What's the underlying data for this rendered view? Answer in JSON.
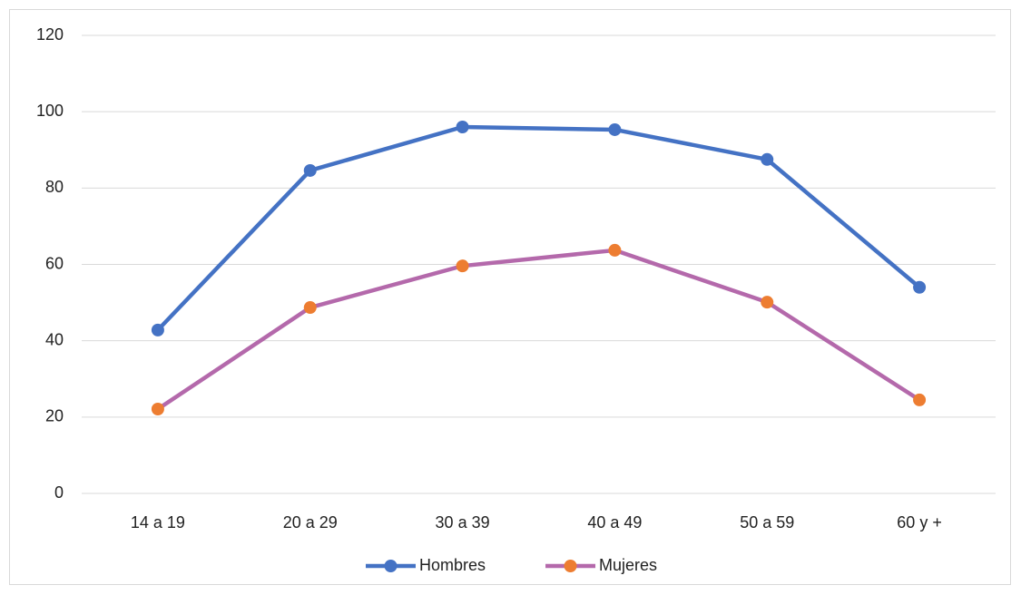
{
  "chart_data": {
    "type": "line",
    "categories": [
      "14 a 19",
      "20 a 29",
      "30 a 39",
      "40 a 49",
      "50 a 59",
      "60 y +"
    ],
    "series": [
      {
        "name": "Hombres",
        "color": "#4472c4",
        "marker_color": "#4472c4",
        "values": [
          42.8,
          84.6,
          96,
          95.3,
          87.5,
          54
        ]
      },
      {
        "name": "Mujeres",
        "color": "#b469ab",
        "marker_color": "#ed7d31",
        "values": [
          22.1,
          48.7,
          59.6,
          63.7,
          50.1,
          24.5
        ]
      }
    ],
    "ylim": [
      0,
      120
    ],
    "yticks": [
      0,
      20,
      40,
      60,
      80,
      100,
      120
    ],
    "grid": true,
    "legend": "bottom"
  }
}
